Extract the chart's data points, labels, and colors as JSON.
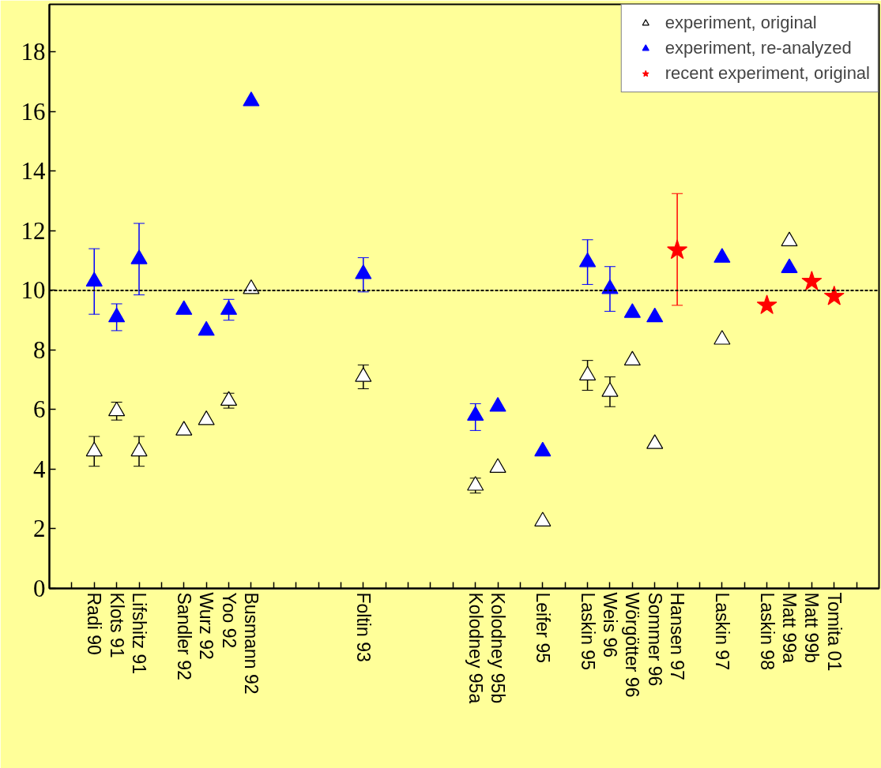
{
  "chart_data": {
    "type": "scatter",
    "categories": [
      null,
      "Radi 90",
      "Klots 91",
      "Lifshitz 91",
      null,
      "Sandler 92",
      "Wurz 92",
      "Yoo 92",
      "Busmann 92",
      null,
      null,
      null,
      null,
      "Foltin 93",
      null,
      null,
      null,
      null,
      "Kolodney 95a",
      "Kolodney 95b",
      null,
      "Leifer 95",
      null,
      "Laskin 95",
      "Weis 96",
      "Wörgötter 96",
      "Sommer 96",
      "Hansen 97",
      null,
      "Laskin 97",
      null,
      "Laskin 98",
      "Matt 99a",
      "Matt 99b",
      "Tomita 01",
      null
    ],
    "series": [
      {
        "name": "experiment, original",
        "color": "#ffffff",
        "marker": "triangle",
        "values": [
          null,
          4.6,
          5.95,
          4.6,
          null,
          5.3,
          5.65,
          6.3,
          10.05,
          null,
          null,
          null,
          null,
          7.1,
          null,
          null,
          null,
          null,
          3.45,
          4.05,
          null,
          2.25,
          null,
          7.15,
          6.6,
          7.65,
          4.85,
          null,
          null,
          8.35,
          null,
          null,
          11.65,
          null,
          null,
          null
        ],
        "errors": [
          null,
          0.5,
          0.3,
          0.5,
          null,
          null,
          null,
          0.25,
          null,
          null,
          null,
          null,
          null,
          0.4,
          null,
          null,
          null,
          null,
          0.25,
          null,
          null,
          null,
          null,
          0.5,
          0.5,
          null,
          null,
          null,
          null,
          null,
          null,
          null,
          null,
          null,
          null,
          null
        ]
      },
      {
        "name": "experiment, re-analyzed",
        "color": "#0000ff",
        "marker": "triangle",
        "values": [
          null,
          10.3,
          9.1,
          11.05,
          null,
          9.35,
          8.65,
          9.35,
          16.35,
          null,
          null,
          null,
          null,
          10.55,
          null,
          null,
          null,
          null,
          5.8,
          6.1,
          null,
          4.6,
          null,
          10.95,
          10.05,
          9.25,
          9.1,
          null,
          null,
          11.1,
          null,
          null,
          10.75,
          null,
          null,
          null
        ],
        "errors": [
          null,
          [
            9.2,
            11.4
          ],
          [
            8.65,
            9.55
          ],
          [
            9.85,
            12.25
          ],
          null,
          null,
          null,
          [
            9.0,
            9.7
          ],
          null,
          null,
          null,
          null,
          null,
          [
            9.95,
            11.1
          ],
          null,
          null,
          null,
          null,
          [
            5.3,
            6.2
          ],
          null,
          null,
          null,
          null,
          [
            10.2,
            11.7
          ],
          [
            9.3,
            10.8
          ],
          null,
          null,
          null,
          null,
          null,
          null,
          null,
          null,
          null,
          null,
          null
        ]
      },
      {
        "name": "recent experiment, original",
        "color": "#ff0000",
        "marker": "star",
        "values": [
          null,
          null,
          null,
          null,
          null,
          null,
          null,
          null,
          null,
          null,
          null,
          null,
          null,
          null,
          null,
          null,
          null,
          null,
          null,
          null,
          null,
          null,
          null,
          null,
          null,
          null,
          null,
          11.35,
          null,
          null,
          null,
          9.5,
          null,
          10.3,
          9.8,
          null
        ],
        "errors": [
          null,
          null,
          null,
          null,
          null,
          null,
          null,
          null,
          null,
          null,
          null,
          null,
          null,
          null,
          null,
          null,
          null,
          null,
          null,
          null,
          null,
          null,
          null,
          null,
          null,
          null,
          null,
          [
            9.5,
            13.25
          ],
          null,
          null,
          null,
          null,
          null,
          null,
          null,
          null
        ]
      }
    ],
    "ylim": [
      0,
      19.6
    ],
    "yticks": [
      0,
      2,
      4,
      6,
      8,
      10,
      12,
      14,
      16,
      18
    ],
    "ref_lines": [
      {
        "axis": "y",
        "value": 10,
        "line_style": "dashed"
      }
    ],
    "grid": false,
    "legend": "top right"
  }
}
